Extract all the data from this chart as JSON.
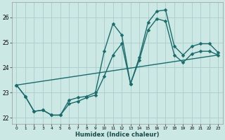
{
  "xlabel": "Humidex (Indice chaleur)",
  "background_color": "#cce8e4",
  "grid_color": "#aaccca",
  "line_color": "#1a6b6b",
  "xlim": [
    -0.5,
    23.5
  ],
  "ylim": [
    21.75,
    26.6
  ],
  "xticks": [
    0,
    1,
    2,
    3,
    4,
    5,
    6,
    7,
    8,
    9,
    10,
    11,
    12,
    13,
    14,
    15,
    16,
    17,
    18,
    19,
    20,
    21,
    22,
    23
  ],
  "yticks": [
    22,
    23,
    24,
    25,
    26
  ],
  "line_peak": {
    "x": [
      0,
      1,
      2,
      3,
      4,
      5,
      6,
      7,
      8,
      9,
      10,
      11,
      12,
      13,
      14,
      15,
      16,
      17,
      18,
      19,
      20,
      21,
      22,
      23
    ],
    "y": [
      23.3,
      22.85,
      22.25,
      22.3,
      22.1,
      22.1,
      22.7,
      22.8,
      22.85,
      23.0,
      24.65,
      25.75,
      25.3,
      23.35,
      24.4,
      25.8,
      26.25,
      26.3,
      24.85,
      24.5,
      24.85,
      24.95,
      24.95,
      24.6
    ]
  },
  "line_avg": {
    "x": [
      0,
      1,
      2,
      3,
      4,
      5,
      6,
      7,
      8,
      9,
      10,
      11,
      12,
      13,
      14,
      15,
      16,
      17,
      18,
      19,
      20,
      21,
      22,
      23
    ],
    "y": [
      23.3,
      22.85,
      22.25,
      22.3,
      22.1,
      22.1,
      22.55,
      22.65,
      22.8,
      22.9,
      23.65,
      24.5,
      24.95,
      23.35,
      24.3,
      25.5,
      25.95,
      25.85,
      24.5,
      24.2,
      24.55,
      24.65,
      24.65,
      24.5
    ]
  },
  "line_trend": {
    "x": [
      0,
      23
    ],
    "y": [
      23.3,
      24.5
    ]
  },
  "markersize": 2.5,
  "linewidth": 1.0
}
